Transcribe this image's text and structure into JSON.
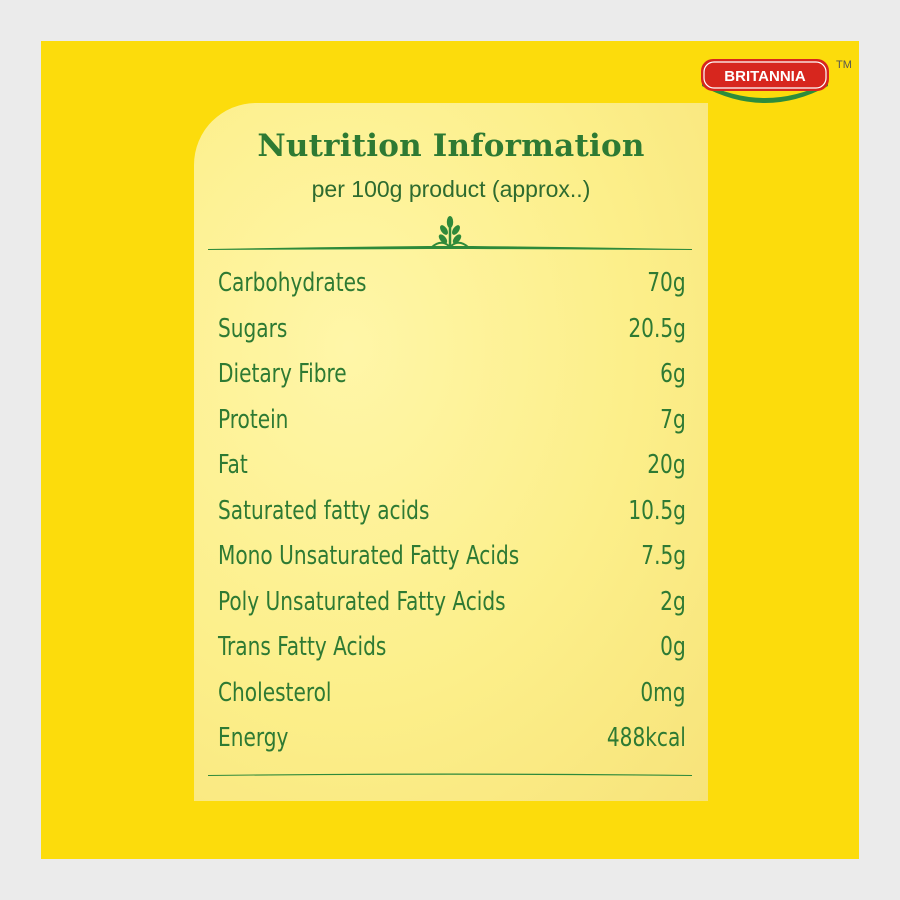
{
  "brand": {
    "logo_text": "BRITANNIA",
    "trademark": "TM"
  },
  "card": {
    "title": "Nutrition Information",
    "subtitle": "per 100g product (approx..)"
  },
  "nutrients": [
    {
      "name": "Carbohydrates",
      "value": "70g"
    },
    {
      "name": "Sugars",
      "value": "20.5g"
    },
    {
      "name": "Dietary Fibre",
      "value": "6g"
    },
    {
      "name": "Protein",
      "value": "7g"
    },
    {
      "name": "Fat",
      "value": "20g"
    },
    {
      "name": "Saturated fatty acids",
      "value": "10.5g"
    },
    {
      "name": "Mono Unsaturated Fatty Acids",
      "value": "7.5g"
    },
    {
      "name": "Poly Unsaturated Fatty Acids",
      "value": "2g"
    },
    {
      "name": "Trans Fatty Acids",
      "value": "0g"
    },
    {
      "name": "Cholesterol",
      "value": "0mg"
    },
    {
      "name": "Energy",
      "value": "488kcal"
    }
  ],
  "colors": {
    "background_yellow": "#fcdc0c",
    "card_cream": "#fcef8a",
    "text_green": "#2e7a33",
    "brand_red": "#d7261e"
  },
  "icons": {
    "divider": "wheat-icon"
  }
}
